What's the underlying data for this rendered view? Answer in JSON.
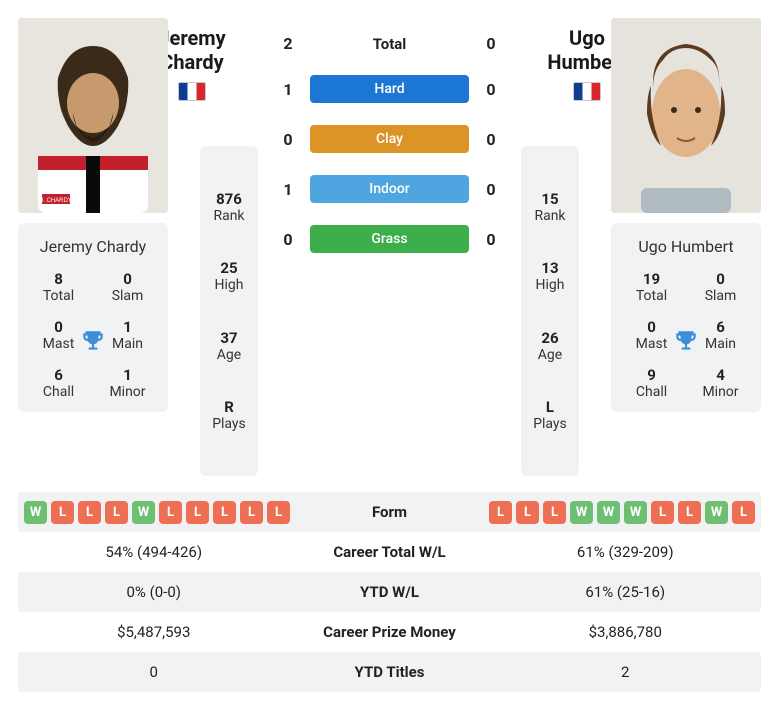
{
  "colors": {
    "win": "#6fbf73",
    "loss": "#ef6f55",
    "hard": "#1c77d4",
    "clay": "#dd9427",
    "indoor": "#4ea5e0",
    "grass": "#3cae4b",
    "trophy": "#3d8ed9",
    "card_bg": "#f1f2f3"
  },
  "p1": {
    "name": "Jeremy Chardy",
    "first": "Jeremy",
    "last": "Chardy",
    "flag": "FR",
    "titles": {
      "total": 8,
      "slam": 0,
      "mast": 0,
      "main": 1,
      "chall": 6,
      "minor": 1
    },
    "stats": {
      "rank": "876",
      "high": "25",
      "age": "37",
      "plays": "R"
    },
    "form": [
      "W",
      "L",
      "L",
      "L",
      "W",
      "L",
      "L",
      "L",
      "L",
      "L"
    ],
    "career_wl": "54% (494-426)",
    "ytd_wl": "0% (0-0)",
    "prize": "$5,487,593",
    "ytd_titles": "0"
  },
  "p2": {
    "name": "Ugo Humbert",
    "first": "Ugo",
    "last": "Humbert",
    "flag": "FR",
    "titles": {
      "total": 19,
      "slam": 0,
      "mast": 0,
      "main": 6,
      "chall": 9,
      "minor": 4
    },
    "stats": {
      "rank": "15",
      "high": "13",
      "age": "26",
      "plays": "L"
    },
    "form": [
      "L",
      "L",
      "L",
      "W",
      "W",
      "W",
      "L",
      "L",
      "W",
      "L"
    ],
    "career_wl": "61% (329-209)",
    "ytd_wl": "61% (25-16)",
    "prize": "$3,886,780",
    "ytd_titles": "2"
  },
  "labels": {
    "total": "Total",
    "slam": "Slam",
    "mast": "Mast",
    "main": "Main",
    "chall": "Chall",
    "minor": "Minor",
    "rank": "Rank",
    "high": "High",
    "age": "Age",
    "plays": "Plays",
    "h2h_total": "Total",
    "form": "Form",
    "career_wl": "Career Total W/L",
    "ytd_wl": "YTD W/L",
    "prize": "Career Prize Money",
    "ytd_titles": "YTD Titles"
  },
  "h2h": [
    {
      "p1": 2,
      "label": "Total",
      "p2": 0,
      "pill": false
    },
    {
      "p1": 1,
      "label": "Hard",
      "p2": 0,
      "pill": true,
      "color": "#1c77d4"
    },
    {
      "p1": 0,
      "label": "Clay",
      "p2": 0,
      "pill": true,
      "color": "#dd9427"
    },
    {
      "p1": 1,
      "label": "Indoor",
      "p2": 0,
      "pill": true,
      "color": "#4ea5e0"
    },
    {
      "p1": 0,
      "label": "Grass",
      "p2": 0,
      "pill": true,
      "color": "#3cae4b"
    }
  ],
  "bottom_rows": [
    {
      "key": "form",
      "label": "Form",
      "shade": true,
      "type": "form"
    },
    {
      "key": "career_wl",
      "label": "Career Total W/L",
      "shade": false,
      "type": "text"
    },
    {
      "key": "ytd_wl",
      "label": "YTD W/L",
      "shade": true,
      "type": "text"
    },
    {
      "key": "prize",
      "label": "Career Prize Money",
      "shade": false,
      "type": "text"
    },
    {
      "key": "ytd_titles",
      "label": "YTD Titles",
      "shade": true,
      "type": "text"
    }
  ]
}
